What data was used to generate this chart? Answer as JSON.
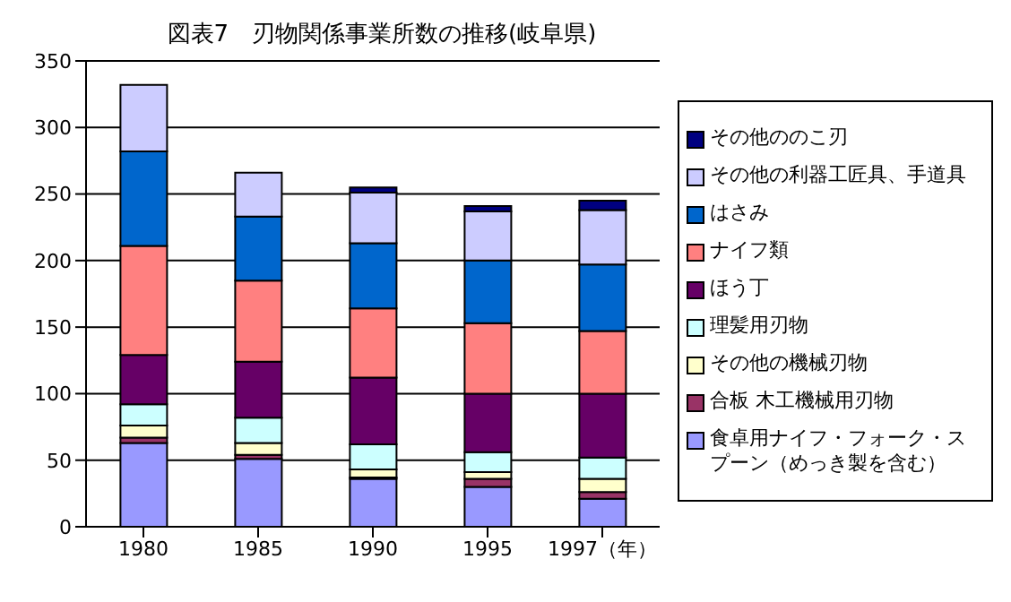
{
  "chart_data": {
    "type": "bar",
    "title": "図表7　刃物関係事業所数の推移(岐阜県)",
    "stacked": true,
    "categories": [
      "1980",
      "1985",
      "1990",
      "1995",
      "1997（年）"
    ],
    "series": [
      {
        "name": "食卓用ナイフ・フォーク・スプーン（めっき製を含む）",
        "color": "#9999ff",
        "values": [
          63,
          51,
          36,
          30,
          21
        ]
      },
      {
        "name": "合板 木工機械用刃物",
        "color": "#993366",
        "values": [
          4,
          3,
          1,
          6,
          5
        ]
      },
      {
        "name": "その他の機械刃物",
        "color": "#ffffcc",
        "values": [
          9,
          9,
          6,
          5,
          10
        ]
      },
      {
        "name": "理髪用刃物",
        "color": "#ccffff",
        "values": [
          16,
          19,
          19,
          15,
          16
        ]
      },
      {
        "name": "ほう丁",
        "color": "#660066",
        "values": [
          37,
          42,
          50,
          44,
          48
        ]
      },
      {
        "name": "ナイフ類",
        "color": "#ff8080",
        "values": [
          82,
          61,
          52,
          53,
          47
        ]
      },
      {
        "name": "はさみ",
        "color": "#0066cc",
        "values": [
          71,
          48,
          49,
          47,
          50
        ]
      },
      {
        "name": "その他の利器工匠具、手道具",
        "color": "#ccccff",
        "values": [
          50,
          33,
          38,
          37,
          41
        ]
      },
      {
        "name": "その他ののこ刃",
        "color": "#000080",
        "values": [
          0,
          0,
          4,
          4,
          7
        ]
      }
    ],
    "ylim": [
      0,
      350
    ],
    "yticks": [
      0,
      50,
      100,
      150,
      200,
      250,
      300,
      350
    ],
    "grid": "y",
    "legend": "right"
  }
}
